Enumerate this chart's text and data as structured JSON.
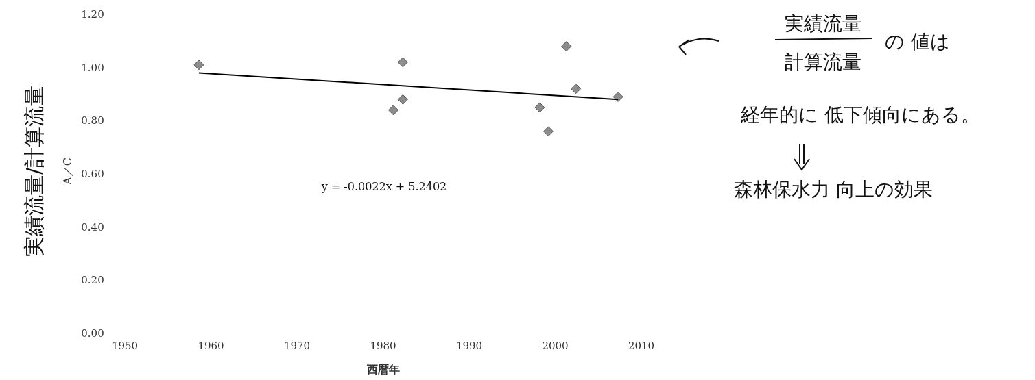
{
  "chart_data": {
    "type": "scatter",
    "xlabel": "西暦年",
    "ylabel": "A／C",
    "marker": "diamond",
    "grid": false,
    "xlim": [
      1950,
      2010
    ],
    "ylim": [
      0,
      1.2
    ],
    "xticks": [
      1950,
      1960,
      1970,
      1980,
      1990,
      2000,
      2010
    ],
    "yticks": [
      {
        "value": 0,
        "label": "0.00"
      },
      {
        "value": 0.2,
        "label": "0.20"
      },
      {
        "value": 0.4,
        "label": "0.40"
      },
      {
        "value": 0.6,
        "label": "0.60"
      },
      {
        "value": 0.8,
        "label": "0.80"
      },
      {
        "value": 1.0,
        "label": "1.00"
      },
      {
        "value": 1.2,
        "label": "1.20"
      }
    ],
    "series": [
      {
        "color": "#8c8c8c",
        "x": [
          1958.6,
          1981.2,
          1982.3,
          1982.3,
          1998.2,
          1999.2,
          2001.3,
          2002.4,
          2007.3
        ],
        "values": [
          1.01,
          0.84,
          0.88,
          1.02,
          0.85,
          0.76,
          1.08,
          0.92,
          0.89
        ]
      },
      {
        "type": "line",
        "color": "#000000",
        "marker": "none",
        "x": [
          1958.6,
          2007.3
        ],
        "values": [
          0.98,
          0.88
        ]
      }
    ],
    "annotations": [
      "y = -0.0022x + 5.2402",
      "実績流量/計算流量",
      "実績流量",
      "計算流量",
      "の 値は",
      "経年的に 低下傾向にある。",
      "森林保水力 向上の効果"
    ]
  }
}
